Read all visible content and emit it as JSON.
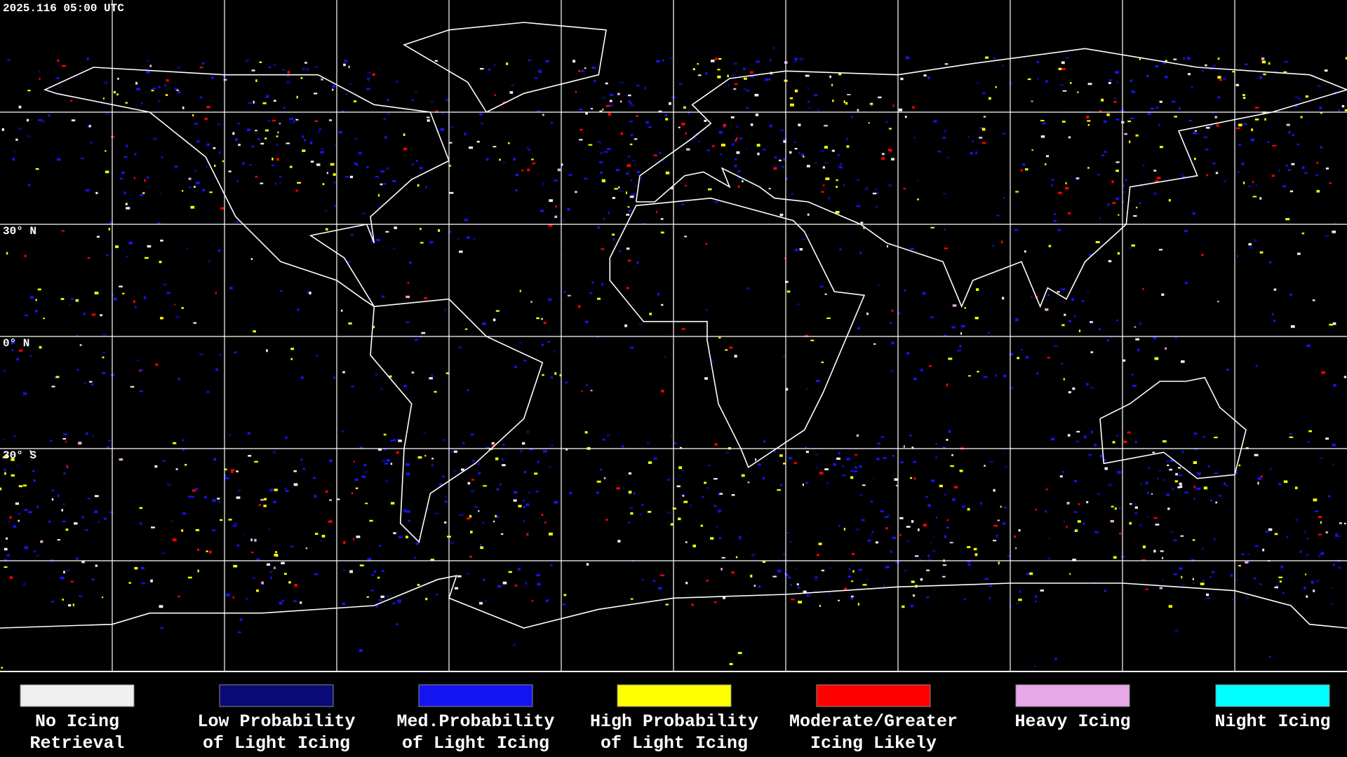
{
  "timestamp": "2025.116 05:00 UTC",
  "latitude_labels": [
    "30° N",
    "0° N",
    "30° S"
  ],
  "legend": [
    {
      "lines": [
        "No Icing",
        "Retrieval"
      ],
      "color": "#f0f0f0"
    },
    {
      "lines": [
        "Low Probability",
        "of Light Icing"
      ],
      "color": "#0a0a78"
    },
    {
      "lines": [
        "Med.Probability",
        "of Light Icing"
      ],
      "color": "#1414f0"
    },
    {
      "lines": [
        "High Probability",
        "of Light Icing"
      ],
      "color": "#ffff00"
    },
    {
      "lines": [
        "Moderate/Greater",
        "Icing Likely"
      ],
      "color": "#ff0000"
    },
    {
      "lines": [
        "Heavy Icing"
      ],
      "color": "#e8a8e8"
    },
    {
      "lines": [
        "Night Icing"
      ],
      "color": "#00ffff"
    }
  ]
}
